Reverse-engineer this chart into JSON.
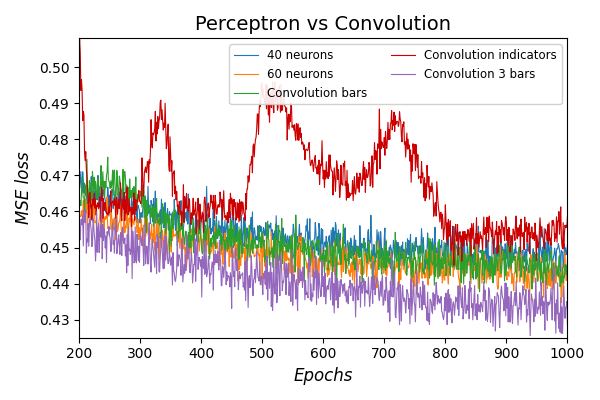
{
  "title": "Perceptron vs Convolution",
  "xlabel": "Epochs",
  "ylabel": "MSE loss",
  "xlim": [
    200,
    1000
  ],
  "ylim": [
    0.425,
    0.508
  ],
  "yticks": [
    0.43,
    0.44,
    0.45,
    0.46,
    0.47,
    0.48,
    0.49,
    0.5
  ],
  "xticks": [
    200,
    300,
    400,
    500,
    600,
    700,
    800,
    900,
    1000
  ],
  "series": [
    {
      "label": "40 neurons",
      "color": "#1f77b4"
    },
    {
      "label": "60 neurons",
      "color": "#ff7f0e"
    },
    {
      "label": "Convolution bars",
      "color": "#2ca02c"
    },
    {
      "label": "Convolution indicators",
      "color": "#cc0000"
    },
    {
      "label": "Convolution 3 bars",
      "color": "#9467bd"
    }
  ],
  "legend_loc": "upper right",
  "figsize": [
    6.0,
    4.0
  ],
  "dpi": 100
}
